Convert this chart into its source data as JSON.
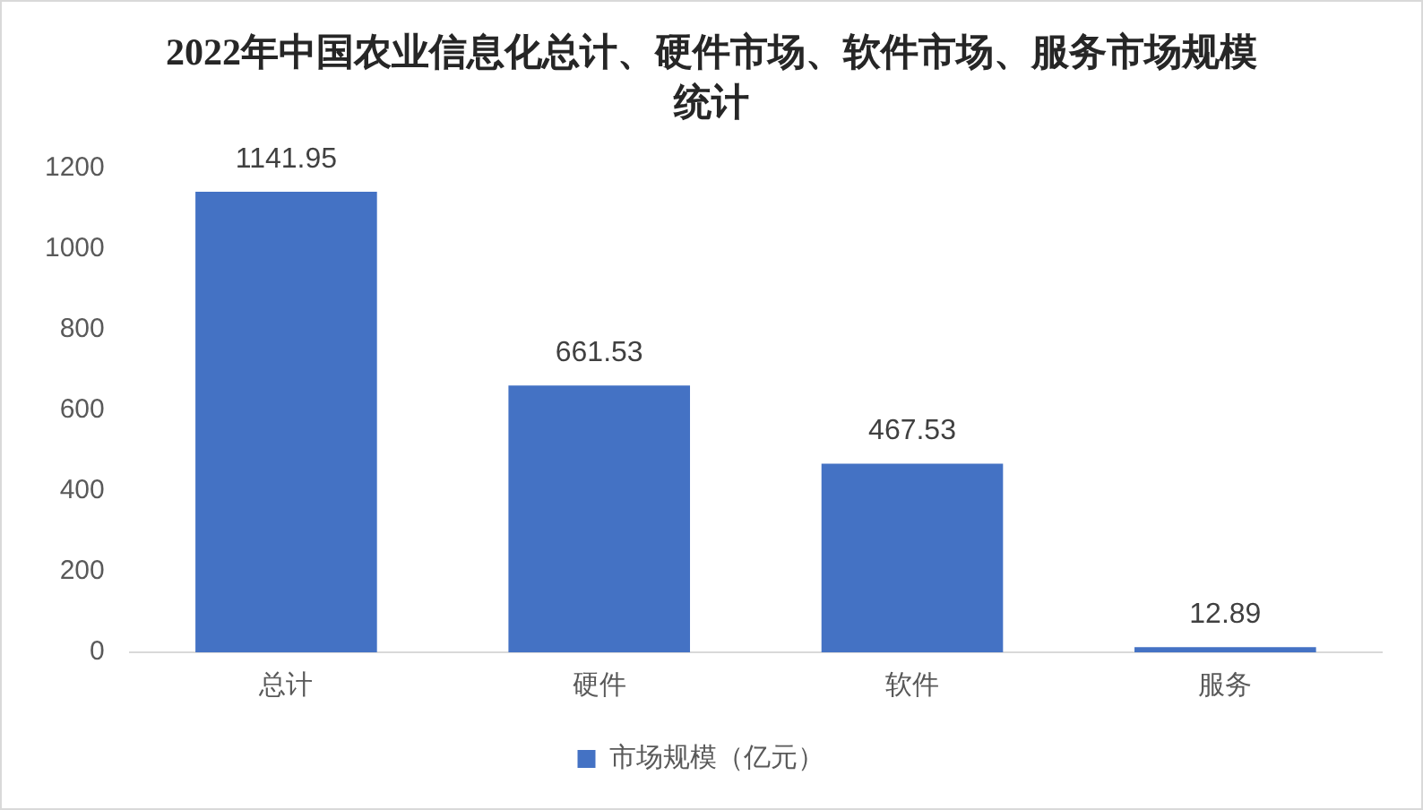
{
  "chart_data": {
    "type": "bar",
    "title": "2022年中国农业信息化总计、硬件市场、软件市场、服务市场规模统计",
    "categories": [
      "总计",
      "硬件",
      "软件",
      "服务"
    ],
    "series": [
      {
        "name": "市场规模（亿元）",
        "color": "#4472c4",
        "values": [
          1141.95,
          661.53,
          467.53,
          12.89
        ]
      }
    ],
    "ylim": [
      0,
      1200
    ],
    "yticks": [
      0,
      200,
      400,
      600,
      800,
      1000,
      1200
    ],
    "grid": false,
    "legend": "bottom",
    "data_labels": true
  }
}
